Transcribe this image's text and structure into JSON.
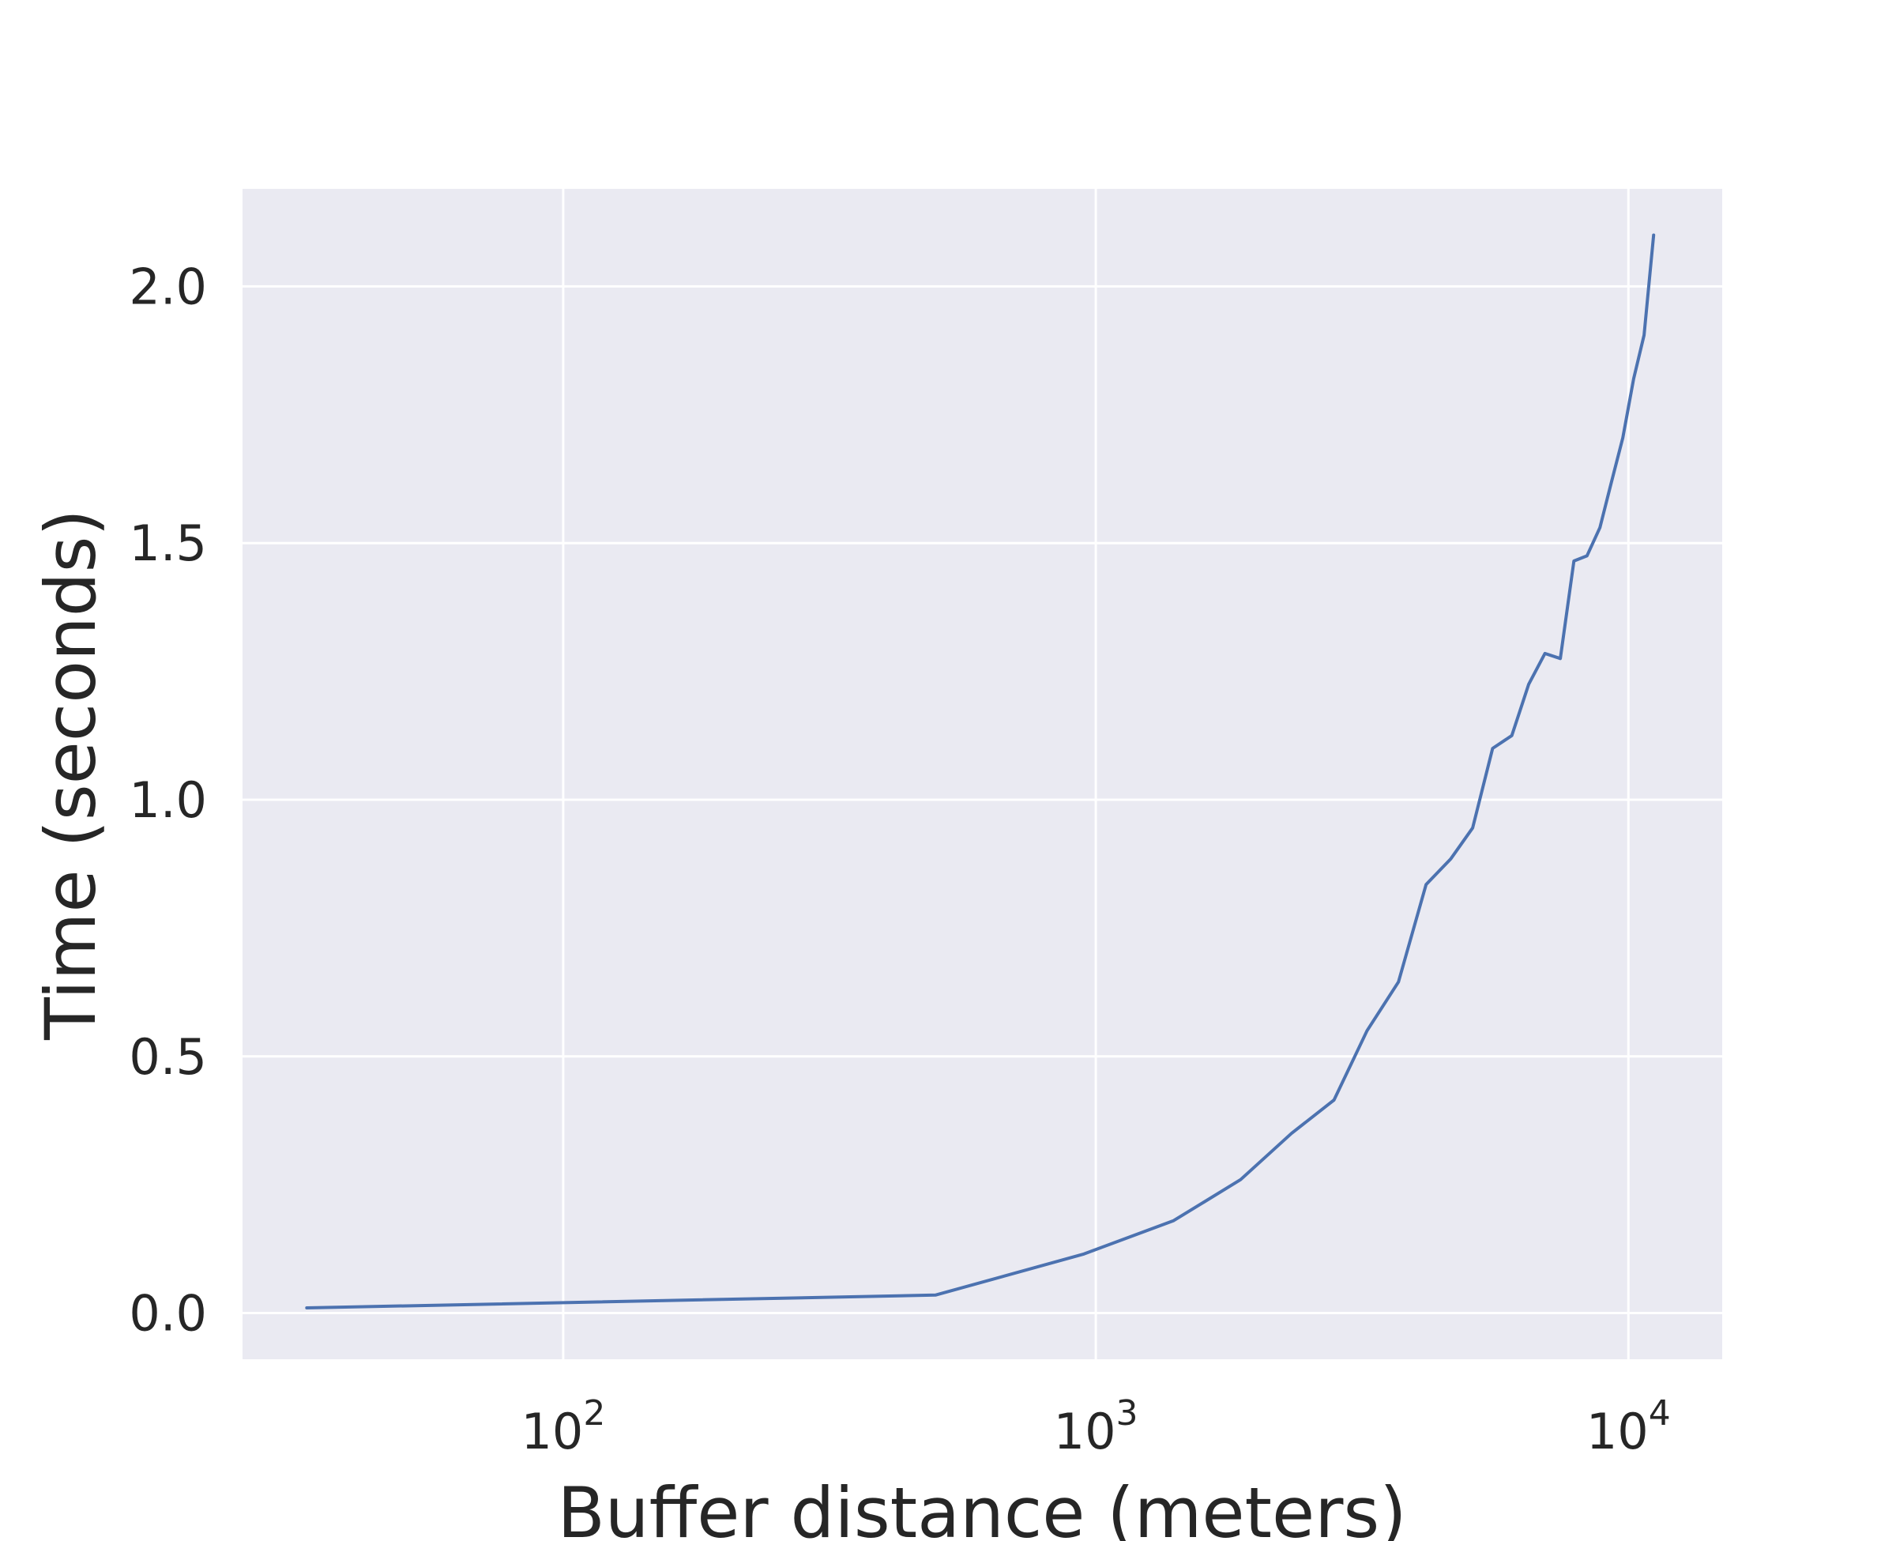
{
  "chart_data": {
    "type": "line",
    "xlabel": "Buffer distance (meters)",
    "ylabel": "Time (seconds)",
    "x_scale": "log",
    "xlim": [
      25,
      15000
    ],
    "ylim": [
      -0.09,
      2.19
    ],
    "grid": true,
    "background_color": "#eaeaf2",
    "grid_color": "#ffffff",
    "line_color": "#4c72b0",
    "x_ticks": [
      {
        "value": 100,
        "base": "10",
        "exp": "2"
      },
      {
        "value": 1000,
        "base": "10",
        "exp": "3"
      },
      {
        "value": 10000,
        "base": "10",
        "exp": "4"
      }
    ],
    "y_ticks": [
      {
        "value": 0.0,
        "label": "0.0"
      },
      {
        "value": 0.5,
        "label": "0.5"
      },
      {
        "value": 1.0,
        "label": "1.0"
      },
      {
        "value": 1.5,
        "label": "1.5"
      },
      {
        "value": 2.0,
        "label": "2.0"
      }
    ],
    "series": [
      {
        "x": [
          33,
          500,
          950,
          1400,
          1870,
          2330,
          2800,
          3230,
          3700,
          4170,
          4640,
          5100,
          5560,
          6040,
          6500,
          6970,
          7450,
          7900,
          8360,
          8840,
          9300,
          9760,
          10230,
          10700,
          11150
        ],
        "y": [
          0.01,
          0.035,
          0.115,
          0.18,
          0.26,
          0.35,
          0.415,
          0.55,
          0.645,
          0.835,
          0.885,
          0.945,
          1.1,
          1.125,
          1.225,
          1.285,
          1.275,
          1.465,
          1.475,
          1.53,
          1.62,
          1.705,
          1.82,
          1.905,
          2.1
        ]
      }
    ]
  }
}
